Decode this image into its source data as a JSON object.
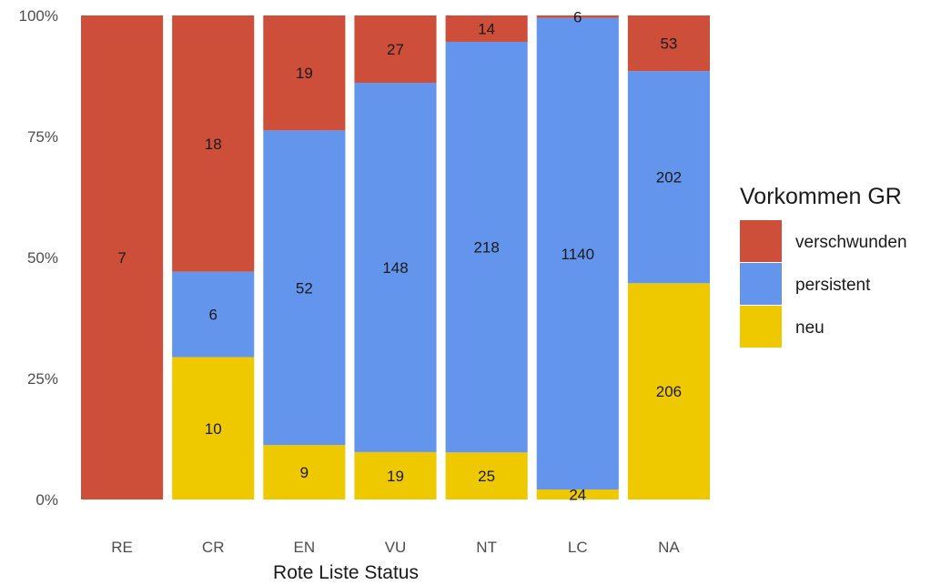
{
  "chart_data": {
    "type": "bar",
    "stacked": true,
    "normalized": true,
    "xlabel": "Rote Liste Status",
    "ylabel": "",
    "categories": [
      "RE",
      "CR",
      "EN",
      "VU",
      "NT",
      "LC",
      "NA"
    ],
    "y_ticks": [
      "0%",
      "25%",
      "50%",
      "75%",
      "100%"
    ],
    "ylim": [
      0,
      1
    ],
    "grid": false,
    "legend": {
      "title": "Vorkommen GR",
      "placement": "right",
      "entries": [
        "verschwunden",
        "persistent",
        "neu"
      ]
    },
    "series": [
      {
        "name": "neu",
        "color": "#EEC900",
        "values": [
          0,
          10,
          9,
          19,
          25,
          24,
          206
        ]
      },
      {
        "name": "persistent",
        "color": "#6495ED",
        "values": [
          0,
          6,
          52,
          148,
          218,
          1140,
          202
        ]
      },
      {
        "name": "verschwunden",
        "color": "#CD4F39",
        "values": [
          7,
          18,
          19,
          27,
          14,
          6,
          53
        ]
      }
    ]
  }
}
